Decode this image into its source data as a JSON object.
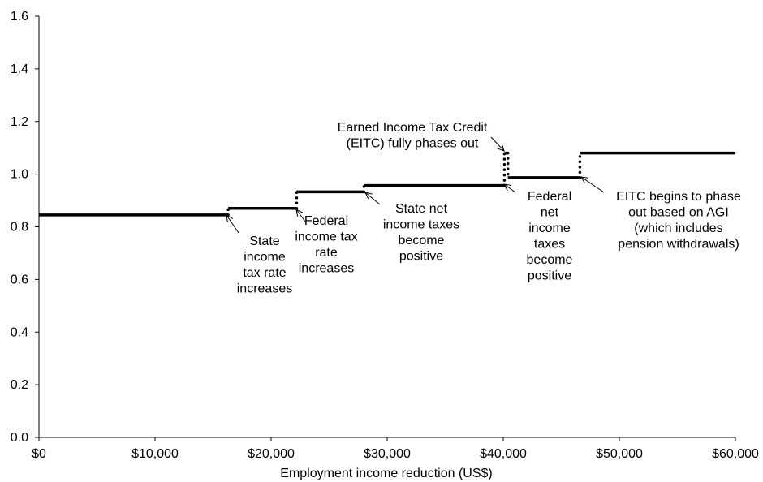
{
  "chart_data": {
    "type": "line",
    "title": "",
    "xlabel": "Employment income reduction (US$)",
    "ylabel": "",
    "xlim": [
      0,
      60000
    ],
    "ylim": [
      0,
      1.6
    ],
    "grid": false,
    "x_ticks": [
      {
        "value": 0,
        "label": "$0"
      },
      {
        "value": 10000,
        "label": "$10,000"
      },
      {
        "value": 20000,
        "label": "$20,000"
      },
      {
        "value": 30000,
        "label": "$30,000"
      },
      {
        "value": 40000,
        "label": "$40,000"
      },
      {
        "value": 50000,
        "label": "$50,000"
      },
      {
        "value": 60000,
        "label": "$60,000"
      }
    ],
    "y_ticks": [
      {
        "value": 0,
        "label": "0.0"
      },
      {
        "value": 0.2,
        "label": "0.2"
      },
      {
        "value": 0.4,
        "label": "0.4"
      },
      {
        "value": 0.6,
        "label": "0.6"
      },
      {
        "value": 0.8,
        "label": "0.8"
      },
      {
        "value": 1.0,
        "label": "1.0"
      },
      {
        "value": 1.2,
        "label": "1.2"
      },
      {
        "value": 1.4,
        "label": "1.4"
      },
      {
        "value": 1.6,
        "label": "1.6"
      }
    ],
    "segments": [
      {
        "x_start": 0,
        "x_end": 16300,
        "y": 0.845
      },
      {
        "x_start": 16300,
        "x_end": 22200,
        "y": 0.87
      },
      {
        "x_start": 22200,
        "x_end": 28000,
        "y": 0.933
      },
      {
        "x_start": 28000,
        "x_end": 40100,
        "y": 0.957
      },
      {
        "x_start": 40100,
        "x_end": 40400,
        "y": 1.08
      },
      {
        "x_start": 40400,
        "x_end": 46600,
        "y": 0.987
      },
      {
        "x_start": 46600,
        "x_end": 60000,
        "y": 1.08
      }
    ],
    "dotted_jumps": [
      {
        "x": 16300,
        "y_from": 0.845,
        "y_to": 0.87
      },
      {
        "x": 22200,
        "y_from": 0.87,
        "y_to": 0.933
      },
      {
        "x": 28000,
        "y_from": 0.933,
        "y_to": 0.957
      },
      {
        "x": 40100,
        "y_from": 0.957,
        "y_to": 1.08
      },
      {
        "x": 40400,
        "y_from": 1.08,
        "y_to": 0.987
      },
      {
        "x": 46600,
        "y_from": 0.987,
        "y_to": 1.08
      }
    ],
    "annotations": [
      {
        "name": "annotation-state-tax-rate",
        "lines": [
          "State",
          "income",
          "tax rate",
          "increases"
        ],
        "arrow_to": {
          "x": 16300,
          "y": 0.845
        }
      },
      {
        "name": "annotation-federal-tax-rate",
        "lines": [
          "Federal",
          "income tax",
          "rate",
          "increases"
        ],
        "arrow_to": {
          "x": 22200,
          "y": 0.87
        }
      },
      {
        "name": "annotation-state-net-taxes",
        "lines": [
          "State net",
          "income taxes",
          "become",
          "positive"
        ],
        "arrow_to": {
          "x": 28000,
          "y": 0.933
        }
      },
      {
        "name": "annotation-eitc-phase-out",
        "lines": [
          "Earned Income Tax Credit",
          "(EITC) fully phases out"
        ],
        "arrow_to": {
          "x": 40200,
          "y": 1.08
        }
      },
      {
        "name": "annotation-federal-net-taxes",
        "lines": [
          "Federal",
          "net",
          "income",
          "taxes",
          "become",
          "positive"
        ],
        "arrow_to": {
          "x": 40100,
          "y": 0.957
        }
      },
      {
        "name": "annotation-eitc-begins",
        "lines": [
          "EITC begins to phase",
          "out based on AGI",
          "(which includes",
          "pension withdrawals)"
        ],
        "arrow_to": {
          "x": 46700,
          "y": 0.987
        }
      }
    ]
  }
}
